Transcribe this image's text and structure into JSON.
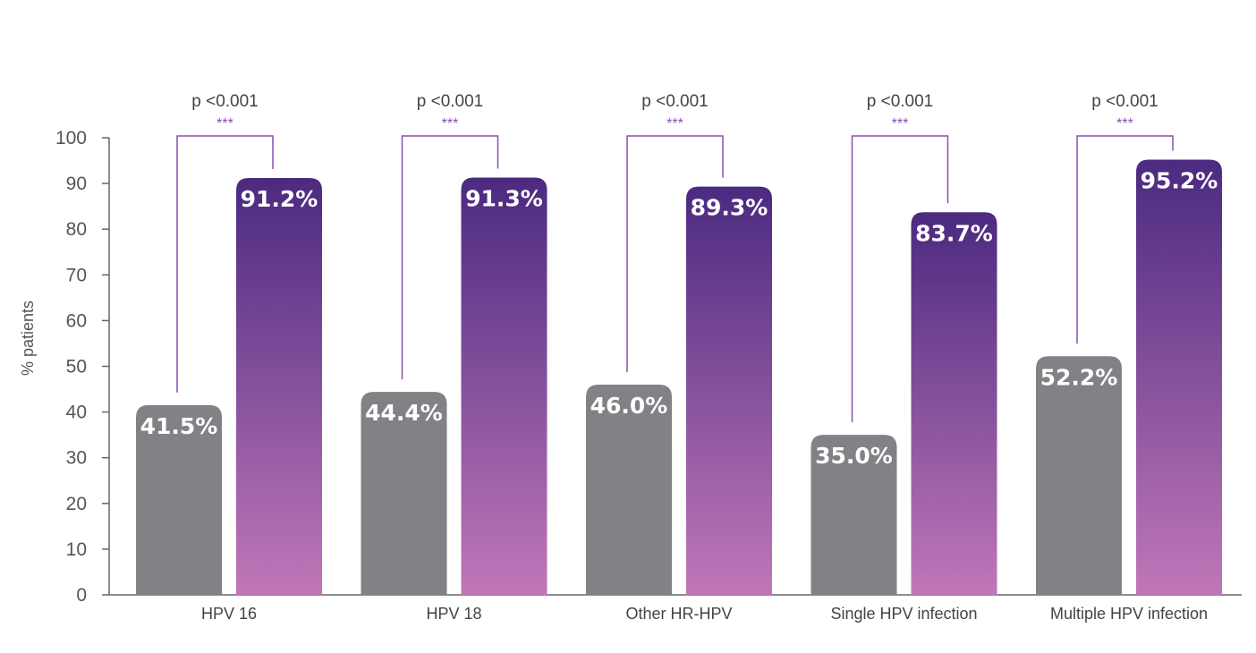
{
  "chart_data": {
    "type": "bar",
    "ylabel": "% patients",
    "ylim": [
      0,
      100
    ],
    "yticks": [
      0,
      10,
      20,
      30,
      40,
      50,
      60,
      70,
      80,
      90,
      100
    ],
    "categories": [
      "HPV 16",
      "HPV 18",
      "Other HR-HPV",
      "Single HPV infection",
      "Multiple HPV infection"
    ],
    "series": [
      {
        "values": [
          41.5,
          44.4,
          46.0,
          35.0,
          52.2
        ],
        "labels": [
          "41.5%",
          "44.4%",
          "46.0%",
          "35.0%",
          "52.2%"
        ],
        "color": "#808285"
      },
      {
        "values": [
          91.2,
          91.3,
          89.3,
          83.7,
          95.2
        ],
        "labels": [
          "91.2%",
          "91.3%",
          "89.3%",
          "83.7%",
          "95.2%"
        ],
        "color_top": "#4b2a80",
        "color_bottom": "#c077b8"
      }
    ],
    "annotations": [
      {
        "p": "p <0.001",
        "stars": "***"
      },
      {
        "p": "p <0.001",
        "stars": "***"
      },
      {
        "p": "p <0.001",
        "stars": "***"
      },
      {
        "p": "p <0.001",
        "stars": "***"
      },
      {
        "p": "p <0.001",
        "stars": "***"
      }
    ],
    "bracket_color": "#8a4fb0",
    "axis_color": "#666666",
    "grid": false
  }
}
